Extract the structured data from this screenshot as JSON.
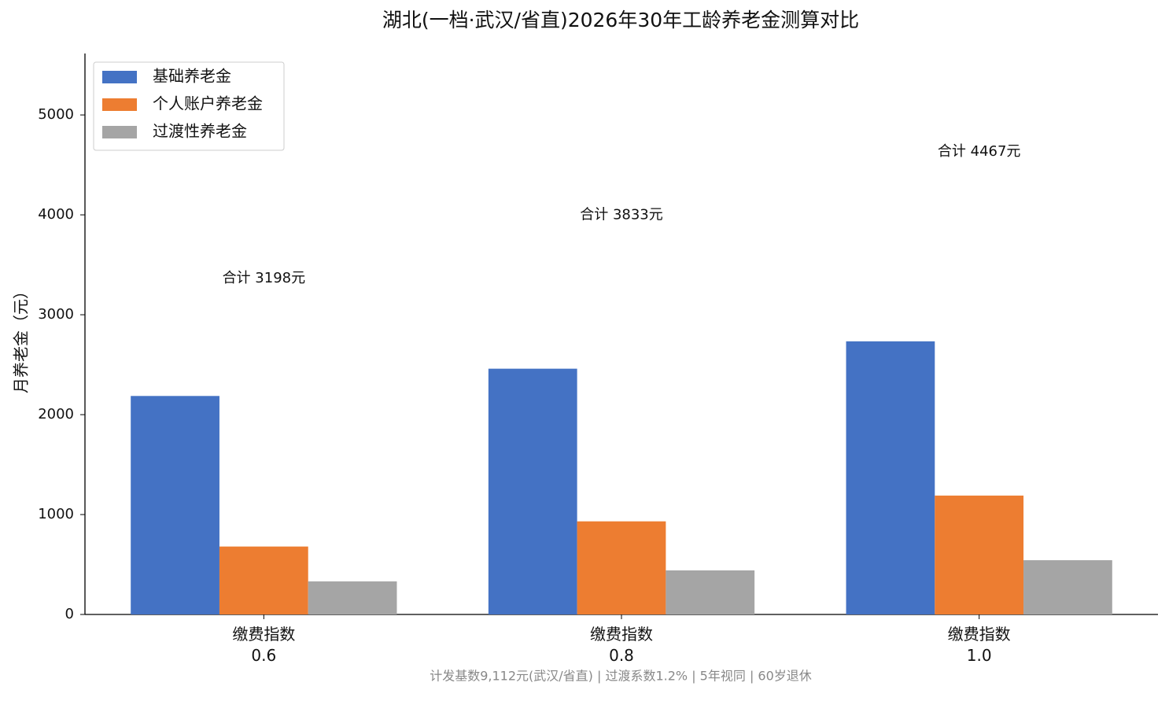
{
  "chart_data": {
    "type": "bar",
    "title": "湖北(一档·武汉/省直)2026年30年工龄养老金测算对比",
    "y_label": "月养老金（元）",
    "note": "计发基数9,112元(武汉/省直) | 过渡系数1.2% | 5年视同 | 60岁退休",
    "categories": [
      "缴费指数\n0.6",
      "缴费指数\n0.8",
      "缴费指数\n1.0"
    ],
    "series": [
      {
        "name": "基础养老金",
        "color": "#4472c4",
        "values": [
          2187,
          2460,
          2734
        ]
      },
      {
        "name": "个人账户养老金",
        "color": "#ed7d31",
        "values": [
          680,
          932,
          1190
        ]
      },
      {
        "name": "过渡性养老金",
        "color": "#a5a5a5",
        "values": [
          331,
          441,
          543
        ]
      }
    ],
    "annotations": [
      "合计 3198元",
      "合计 3833元",
      "合计 4467元"
    ],
    "ylim": [
      0,
      5615
    ],
    "yticks": [
      0,
      1000,
      2000,
      3000,
      4000,
      5000
    ],
    "grid": false,
    "legend": "upper left"
  }
}
